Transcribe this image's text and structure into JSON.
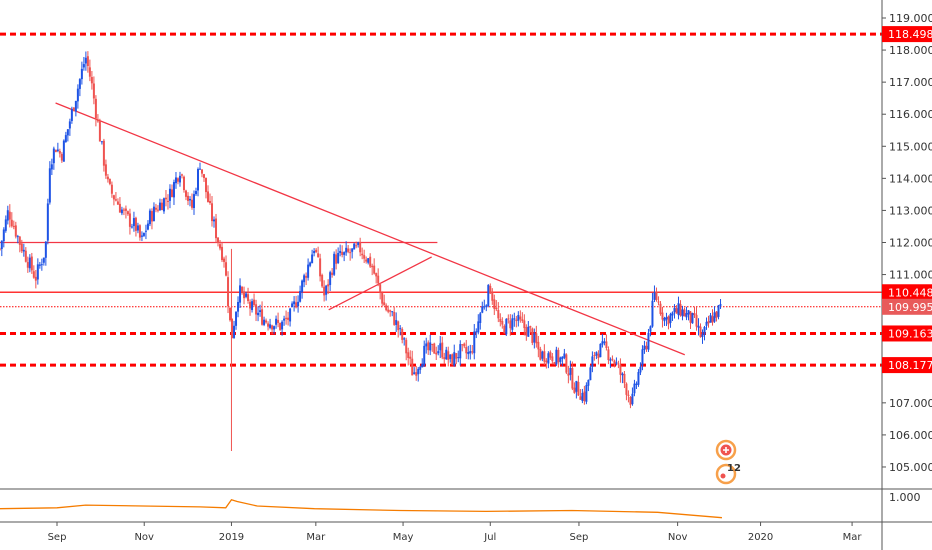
{
  "chart_data": {
    "type": "candlestick",
    "title": "",
    "price_axis": {
      "min": 105,
      "max": 119,
      "ticks": [
        "119.000",
        "118.000",
        "117.000",
        "116.000",
        "115.000",
        "114.000",
        "113.000",
        "112.000",
        "111.000",
        "107.000",
        "106.000",
        "105.000"
      ]
    },
    "time_axis": {
      "labels": [
        "Sep",
        "Nov",
        "2019",
        "Mar",
        "May",
        "Jul",
        "Sep",
        "Nov",
        "2020",
        "Mar"
      ],
      "label_days": [
        0,
        61,
        122,
        181,
        242,
        303,
        365,
        434,
        492,
        556
      ],
      "origin_day_label": "Sep 2018"
    },
    "closes_by_day": [
      [
        -40,
        111.8
      ],
      [
        -34,
        113.0
      ],
      [
        -26,
        112.0
      ],
      [
        -15,
        110.9
      ],
      [
        -8,
        111.8
      ],
      [
        -5,
        114.5
      ],
      [
        -1,
        115.0
      ],
      [
        3,
        114.7
      ],
      [
        9,
        115.8
      ],
      [
        15,
        116.9
      ],
      [
        20,
        117.8
      ],
      [
        24,
        117.0
      ],
      [
        30,
        115.3
      ],
      [
        36,
        113.7
      ],
      [
        43,
        113.2
      ],
      [
        48,
        112.8
      ],
      [
        55,
        112.5
      ],
      [
        59,
        112.0
      ],
      [
        65,
        112.8
      ],
      [
        72,
        113.2
      ],
      [
        79,
        113.5
      ],
      [
        86,
        114.3
      ],
      [
        94,
        113.0
      ],
      [
        100,
        114.5
      ],
      [
        107,
        113.0
      ],
      [
        113,
        112.0
      ],
      [
        117,
        111.5
      ],
      [
        122,
        109.0
      ],
      [
        127,
        110.5
      ],
      [
        135,
        110.0
      ],
      [
        145,
        109.6
      ],
      [
        156,
        109.4
      ],
      [
        163,
        109.7
      ],
      [
        170,
        110.5
      ],
      [
        180,
        111.9
      ],
      [
        187,
        110.3
      ],
      [
        194,
        111.5
      ],
      [
        201,
        111.6
      ],
      [
        212,
        111.8
      ],
      [
        220,
        111.3
      ],
      [
        229,
        110.0
      ],
      [
        236,
        109.6
      ],
      [
        243,
        108.8
      ],
      [
        249,
        107.9
      ],
      [
        257,
        108.6
      ],
      [
        268,
        108.7
      ],
      [
        275,
        108.3
      ],
      [
        282,
        108.6
      ],
      [
        289,
        108.5
      ],
      [
        296,
        109.8
      ],
      [
        303,
        110.6
      ],
      [
        310,
        109.3
      ],
      [
        320,
        109.6
      ],
      [
        331,
        109.2
      ],
      [
        338,
        108.5
      ],
      [
        345,
        108.5
      ],
      [
        355,
        108.3
      ],
      [
        362,
        107.5
      ],
      [
        369,
        107.2
      ],
      [
        376,
        108.6
      ],
      [
        383,
        108.7
      ],
      [
        390,
        108.3
      ],
      [
        397,
        107.6
      ],
      [
        402,
        107.0
      ],
      [
        408,
        108.2
      ],
      [
        413,
        109.0
      ],
      [
        418,
        110.4
      ],
      [
        425,
        109.6
      ],
      [
        436,
        109.9
      ],
      [
        446,
        109.5
      ],
      [
        451,
        109.0
      ],
      [
        457,
        109.6
      ],
      [
        465,
        110.0
      ]
    ],
    "flash_crash": {
      "day": 122,
      "low": 105.5
    },
    "levels": [
      {
        "label": "118.498",
        "value": 118.498,
        "style": "dashed"
      },
      {
        "label": "110.448",
        "value": 110.448,
        "style": "solid"
      },
      {
        "label": "109.995",
        "value": 109.995,
        "style": "dotted",
        "current": true
      },
      {
        "label": "109.163",
        "value": 109.163,
        "style": "dashed"
      },
      {
        "label": "108.177",
        "value": 108.177,
        "style": "dashed"
      }
    ],
    "drawings": [
      {
        "type": "trendline",
        "from": [
          -1,
          116.35
        ],
        "to": [
          439,
          108.5
        ]
      },
      {
        "type": "horizontal-segment",
        "from": [
          -40,
          112.0
        ],
        "to": [
          266,
          112.0
        ]
      },
      {
        "type": "trendline",
        "from": [
          190,
          109.9
        ],
        "to": [
          262,
          111.55
        ]
      }
    ],
    "indicator": {
      "label": "1.000",
      "value_axis": 1.0,
      "points": [
        [
          -40,
          0.87
        ],
        [
          0,
          0.88
        ],
        [
          20,
          0.91
        ],
        [
          60,
          0.9
        ],
        [
          100,
          0.89
        ],
        [
          118,
          0.88
        ],
        [
          122,
          0.97
        ],
        [
          126,
          0.95
        ],
        [
          140,
          0.9
        ],
        [
          180,
          0.87
        ],
        [
          240,
          0.85
        ],
        [
          300,
          0.84
        ],
        [
          360,
          0.85
        ],
        [
          420,
          0.83
        ],
        [
          465,
          0.77
        ]
      ]
    },
    "colors": {
      "up": "#1e53e5",
      "down": "#ef5350",
      "level": "#ff0000",
      "indicator": "#f57c00"
    }
  },
  "badges": {
    "count": "12"
  }
}
